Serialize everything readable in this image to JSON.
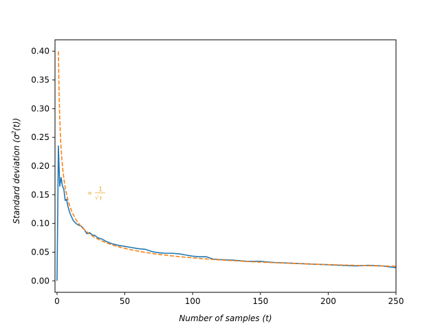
{
  "chart_data": {
    "type": "line",
    "title": "",
    "xlabel": "Number of samples",
    "xlabel_var": "(t)",
    "ylabel": "Standard deviation",
    "ylabel_var": "(σ",
    "ylabel_sup": "2",
    "ylabel_tail": "(t))",
    "xlim": [
      -1.5,
      250
    ],
    "ylim": [
      -0.02,
      0.42
    ],
    "xticks": [
      0,
      50,
      100,
      150,
      200,
      250
    ],
    "xtick_labels": [
      "0",
      "50",
      "100",
      "150",
      "200",
      "250"
    ],
    "yticks": [
      0.0,
      0.05,
      0.1,
      0.15,
      0.2,
      0.25,
      0.3,
      0.35,
      0.4
    ],
    "ytick_labels": [
      "0.00",
      "0.05",
      "0.10",
      "0.15",
      "0.20",
      "0.25",
      "0.30",
      "0.35",
      "0.40"
    ],
    "grid": false,
    "annotation": {
      "prefix": "∝",
      "numerator": "1",
      "denominator": "t",
      "radical": "√",
      "x": 30,
      "y": 0.154,
      "color": "#e8a825"
    },
    "series": [
      {
        "style": "solid",
        "color": "#1f77b4",
        "x": [
          0,
          1,
          2,
          3,
          4,
          5,
          6,
          7,
          8,
          9,
          10,
          12,
          14,
          16,
          18,
          20,
          22,
          24,
          26,
          28,
          30,
          33,
          36,
          40,
          45,
          50,
          55,
          60,
          65,
          70,
          75,
          80,
          85,
          90,
          95,
          100,
          105,
          110,
          115,
          120,
          130,
          140,
          150,
          160,
          170,
          180,
          190,
          200,
          210,
          220,
          230,
          240,
          250
        ],
        "y": [
          0.0,
          0.235,
          0.165,
          0.18,
          0.165,
          0.16,
          0.14,
          0.142,
          0.13,
          0.122,
          0.115,
          0.105,
          0.1,
          0.097,
          0.095,
          0.09,
          0.082,
          0.084,
          0.08,
          0.079,
          0.075,
          0.073,
          0.069,
          0.065,
          0.062,
          0.06,
          0.058,
          0.056,
          0.055,
          0.051,
          0.049,
          0.048,
          0.048,
          0.047,
          0.045,
          0.043,
          0.042,
          0.042,
          0.038,
          0.037,
          0.036,
          0.034,
          0.034,
          0.032,
          0.031,
          0.03,
          0.029,
          0.028,
          0.027,
          0.026,
          0.027,
          0.026,
          0.023
        ]
      },
      {
        "style": "dashed",
        "color": "#ff7f0e",
        "formula": "0.4 / sqrt(t)",
        "coefficient": 0.4,
        "x_start": 1,
        "x_end": 250
      }
    ]
  }
}
